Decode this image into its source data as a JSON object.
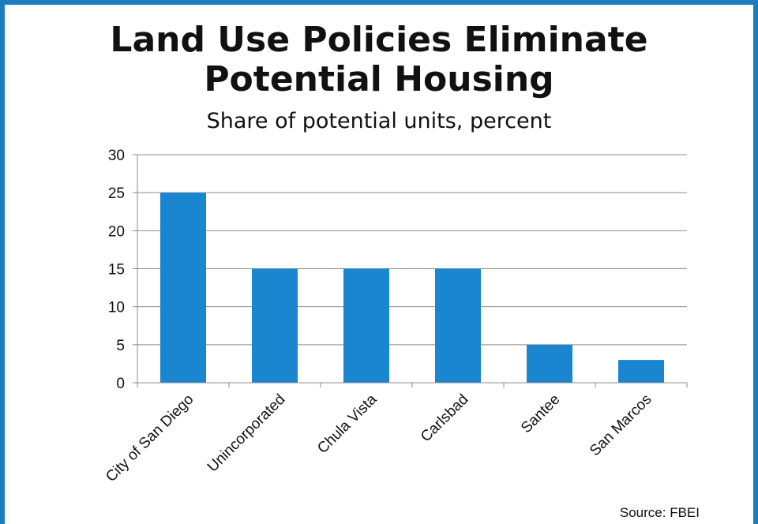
{
  "chart_data": {
    "type": "bar",
    "title": "Land Use Policies Eliminate Potential Housing",
    "subtitle": "Share of potential units, percent",
    "categories": [
      "City of San Diego",
      "Unincorporated",
      "Chula Vista",
      "Carlsbad",
      "Santee",
      "San Marcos"
    ],
    "values": [
      25,
      15,
      15,
      15,
      5,
      3
    ],
    "ylim": [
      0,
      30
    ],
    "yticks": [
      0,
      5,
      10,
      15,
      20,
      25,
      30
    ],
    "xlabel": "",
    "ylabel": "",
    "grid": true,
    "legend": "none",
    "bar_color": "#1a86cf"
  },
  "source": "Source: FBEI",
  "colors": {
    "frame": "#1a7dbf"
  }
}
